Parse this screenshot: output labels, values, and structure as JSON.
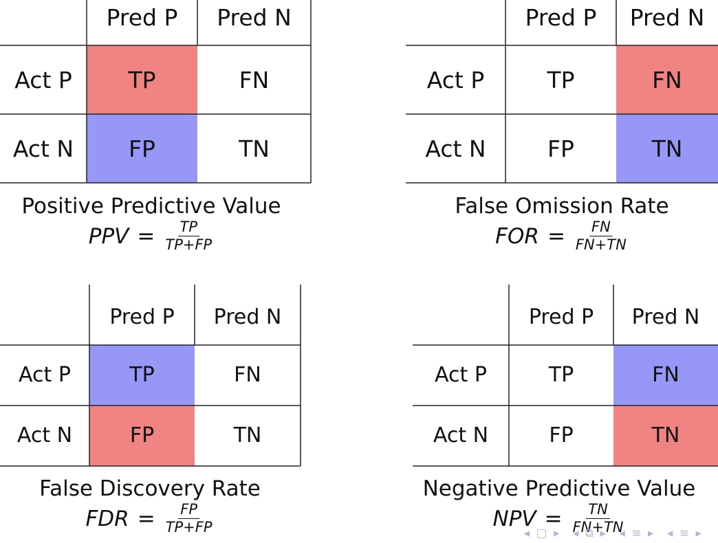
{
  "colors": {
    "red": "#f08482",
    "blue": "#9797f7",
    "line": "#222222"
  },
  "headers": {
    "pred_p": "Pred P",
    "pred_n": "Pred N",
    "act_p": "Act P",
    "act_n": "Act N"
  },
  "cells": {
    "tp": "TP",
    "fn": "FN",
    "fp": "FP",
    "tn": "TN"
  },
  "panels": [
    {
      "key": "ppv",
      "highlight": {
        "tp": "red",
        "fp": "blue"
      },
      "caption": "Positive Predictive Value",
      "formula": {
        "lhs": "PPV",
        "eq": "=",
        "num": "TP",
        "den": "TP+FP"
      }
    },
    {
      "key": "for",
      "highlight": {
        "fn": "red",
        "tn": "blue"
      },
      "caption": "False Omission Rate",
      "formula": {
        "lhs": "FOR",
        "eq": "=",
        "num": "FN",
        "den": "FN+TN"
      }
    },
    {
      "key": "fdr",
      "highlight": {
        "tp": "blue",
        "fp": "red"
      },
      "caption": "False Discovery Rate",
      "formula": {
        "lhs": "FDR",
        "eq": "=",
        "num": "FP",
        "den": "TP+FP"
      }
    },
    {
      "key": "npv",
      "highlight": {
        "fn": "blue",
        "tn": "red"
      },
      "caption": "Negative Predictive Value",
      "formula": {
        "lhs": "NPV",
        "eq": "=",
        "num": "TN",
        "den": "FN+TN"
      }
    }
  ],
  "nav": [
    "◂ ▢ ▸",
    "◂ ⧉ ▸",
    "◂ ≡ ▸",
    "◂ ≡ ▸"
  ]
}
